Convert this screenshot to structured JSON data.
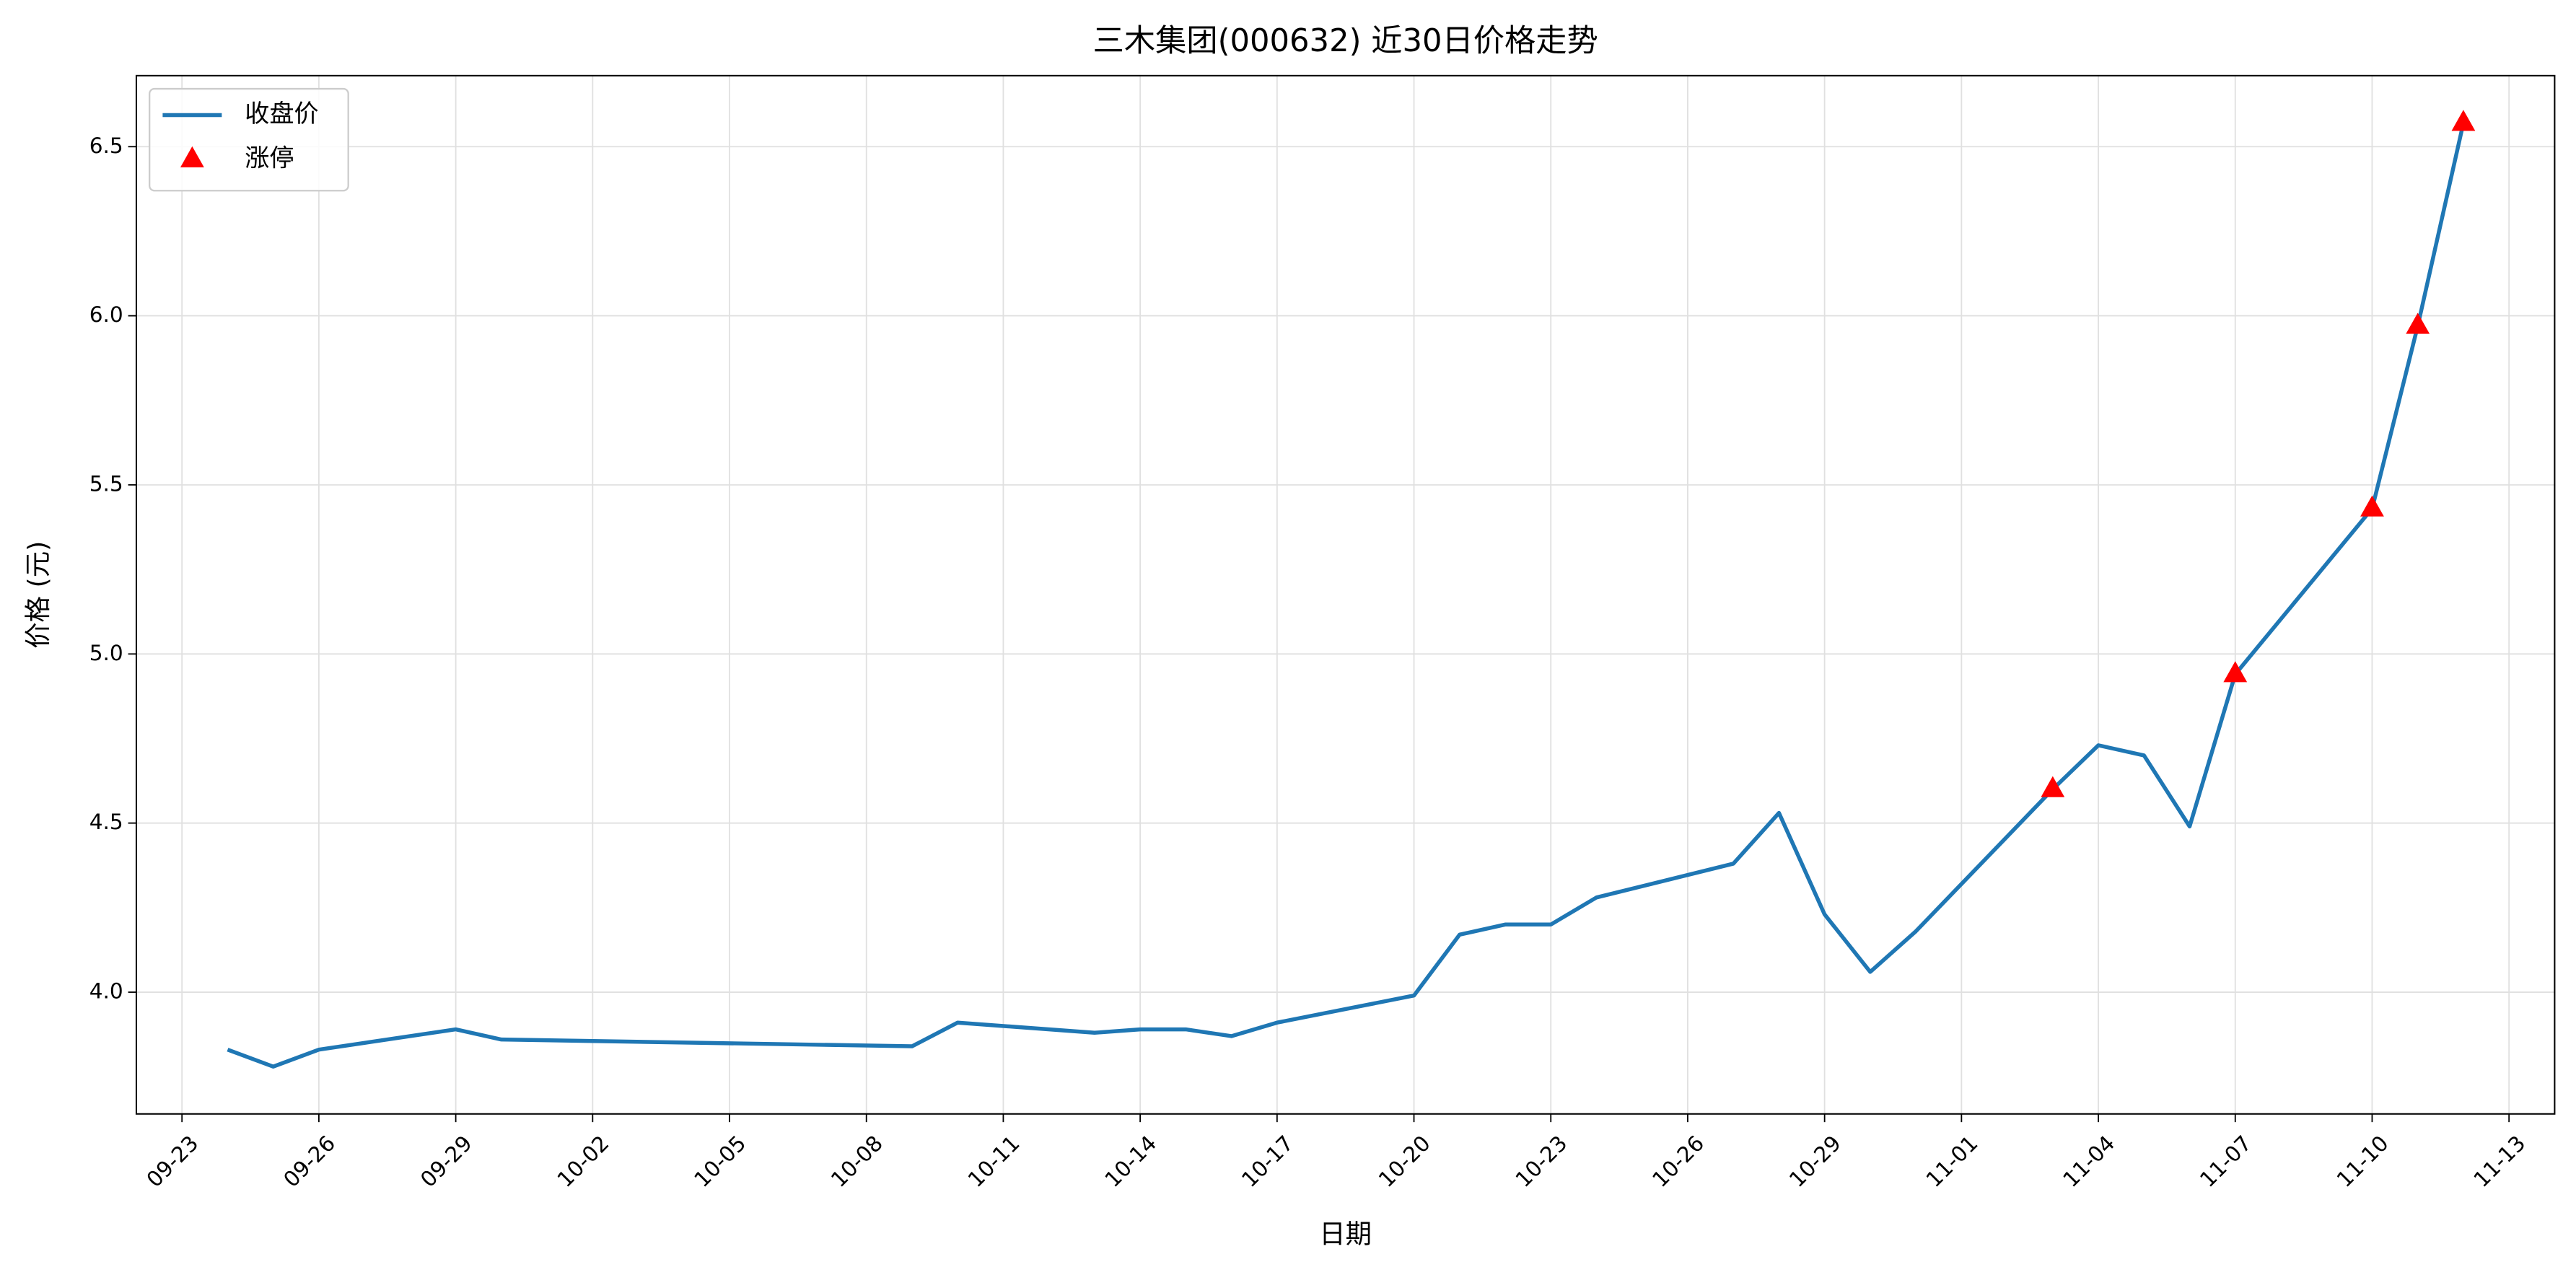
{
  "chart_data": {
    "type": "line",
    "title": "三木集团(000632) 近30日价格走势",
    "xlabel": "日期",
    "ylabel": "价格 (元)",
    "x": [
      "09-24",
      "09-25",
      "09-26",
      "09-29",
      "09-30",
      "10-09",
      "10-10",
      "10-13",
      "10-14",
      "10-15",
      "10-16",
      "10-17",
      "10-20",
      "10-21",
      "10-22",
      "10-23",
      "10-24",
      "10-27",
      "10-28",
      "10-29",
      "10-30",
      "10-31",
      "11-03",
      "11-04",
      "11-05",
      "11-06",
      "11-07",
      "11-10",
      "11-11",
      "11-12"
    ],
    "series": [
      {
        "name": "收盘价",
        "type": "line",
        "color": "#1f77b4",
        "values": [
          3.83,
          3.78,
          3.83,
          3.89,
          3.86,
          3.84,
          3.91,
          3.88,
          3.89,
          3.89,
          3.87,
          3.91,
          3.99,
          4.17,
          4.2,
          4.2,
          4.28,
          4.38,
          4.53,
          4.23,
          4.06,
          4.18,
          4.6,
          4.73,
          4.7,
          4.49,
          4.94,
          5.43,
          5.97,
          6.57
        ]
      },
      {
        "name": "涨停",
        "type": "scatter",
        "color": "#ff0000",
        "marker": "^",
        "x": [
          "11-03",
          "11-07",
          "11-10",
          "11-11",
          "11-12"
        ],
        "values": [
          4.6,
          4.94,
          5.43,
          5.97,
          6.57
        ]
      }
    ],
    "xlim": [
      "09-22",
      "11-14"
    ],
    "xticks": [
      "09-23",
      "09-26",
      "09-29",
      "10-02",
      "10-05",
      "10-08",
      "10-11",
      "10-14",
      "10-17",
      "10-20",
      "10-23",
      "10-26",
      "10-29",
      "11-01",
      "11-04",
      "11-07",
      "11-10",
      "11-13"
    ],
    "ylim": [
      3.64,
      6.71
    ],
    "yticks": [
      {
        "value": 4,
        "label": "4.0"
      },
      4.5,
      {
        "value": 5,
        "label": "5.0"
      },
      5.5,
      {
        "value": 6,
        "label": "6.0"
      },
      6.5
    ],
    "grid": true,
    "legend": "upper left"
  }
}
